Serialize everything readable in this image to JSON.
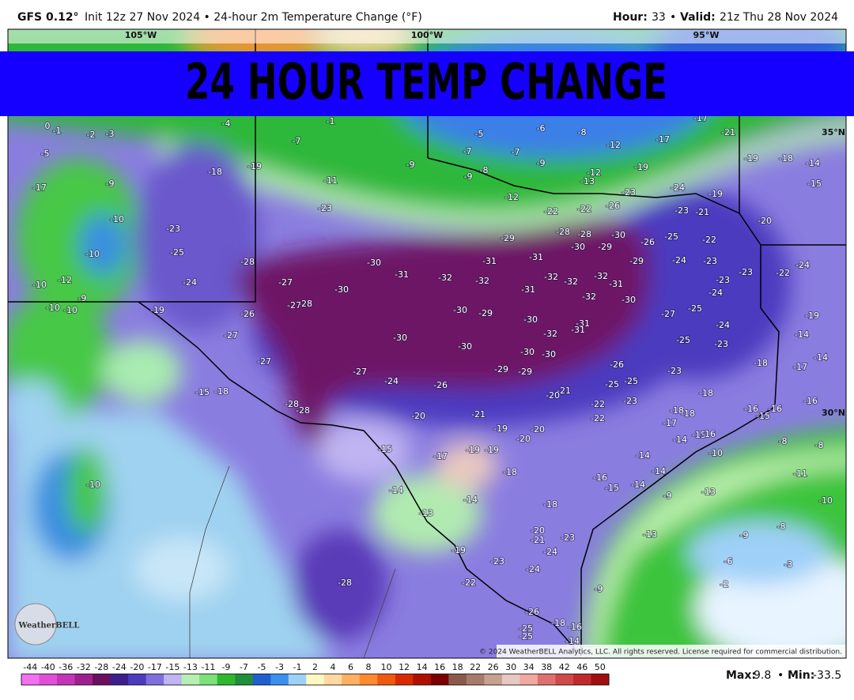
{
  "header": {
    "model": "GFS 0.12°",
    "description": "Init 12z 27 Nov 2024 • 24-hour 2m Temperature Change (°F)",
    "hour_label": "Hour:",
    "hour": "33",
    "separator": "•",
    "valid_label": "Valid:",
    "valid": "21z Thu 28 Nov 2024"
  },
  "banner": "24 HOUR TEMP CHANGE",
  "map": {
    "longitude_labels": [
      "105°W",
      "100°W",
      "95°W"
    ],
    "latitude_labels": [
      "35°N",
      "30°N"
    ],
    "grid_labels": [
      0,
      -1,
      -2,
      -3,
      -4,
      -1,
      -5,
      -6,
      -8,
      -7,
      -12,
      -17,
      -17,
      -21,
      -5,
      -7,
      -7,
      -9,
      -9,
      -19,
      -19,
      -18,
      -14,
      -17,
      -9,
      -18,
      -19,
      -11,
      -8,
      -9,
      -12,
      -13,
      -24,
      -19,
      -15,
      -12,
      -23,
      -23,
      -22,
      -22,
      -26,
      -23,
      -21,
      -20,
      -10,
      -23,
      -28,
      -28,
      -30,
      -29,
      -22,
      -26,
      -25,
      -10,
      -25,
      -30,
      -29,
      -30,
      -31,
      -31,
      -29,
      -24,
      -23,
      -24,
      -28,
      -23,
      -22,
      -12,
      -10,
      -24,
      -27,
      -30,
      -31,
      -32,
      -32,
      -32,
      -32,
      -32,
      -31,
      -23,
      -31,
      -32,
      -30,
      -24,
      -9,
      -10,
      -10,
      -19,
      -27,
      -28,
      -26,
      -30,
      -29,
      -25,
      -27,
      -19,
      -30,
      -31,
      -31,
      -32,
      -24,
      -14,
      -27,
      -30,
      -30,
      -25,
      -23,
      -14,
      -30,
      -30,
      -27,
      -26,
      -18,
      -17,
      -27,
      -29,
      -29,
      -23,
      -24,
      -26,
      -25,
      -25,
      -21,
      -20,
      -15,
      -18,
      -18,
      -22,
      -23,
      -16,
      -28,
      -28,
      -18,
      -18,
      -16,
      -15,
      -16,
      -20,
      -21,
      -22,
      -17,
      -19,
      -20,
      -14,
      -15,
      -20,
      -16,
      -8,
      -8,
      -15,
      -17,
      -19,
      -19,
      -14,
      -10,
      -14,
      -11,
      -18,
      -16,
      -10,
      -15,
      -14,
      -14,
      -9,
      -13,
      -10,
      -14,
      -18,
      -13,
      -8,
      -20,
      -21,
      -13,
      -9,
      -23,
      -19,
      -24,
      -6,
      -3,
      -23,
      -24,
      -9,
      -2,
      -28,
      -22,
      -26,
      -18,
      -16,
      -25,
      -25,
      -14
    ],
    "logo": "WeatherBELL",
    "copyright": "© 2024 WeatherBELL Analytics, LLC. All rights reserved. License required for commercial distribution."
  },
  "legend": {
    "levels": [
      -44,
      -40,
      -36,
      -32,
      -28,
      -24,
      -20,
      -17,
      -15,
      -13,
      -11,
      -9,
      -7,
      -5,
      -3,
      -1,
      2,
      4,
      6,
      8,
      10,
      12,
      14,
      16,
      18,
      22,
      26,
      30,
      34,
      38,
      42,
      46,
      50
    ],
    "colors": [
      "#f46ff2",
      "#e04fd8",
      "#c334b8",
      "#9e1f8f",
      "#6a0f5f",
      "#3c1d8c",
      "#4b3bbf",
      "#7e6fdc",
      "#c0b4f2",
      "#b6f0b0",
      "#7ee07a",
      "#2fb82f",
      "#1f8f3a",
      "#1f5fd0",
      "#3b8ff0",
      "#9fd0f8",
      "#fff8c0",
      "#ffd9a0",
      "#ffb060",
      "#ff8a30",
      "#f05a10",
      "#d82a00",
      "#b01000",
      "#7a0000",
      "#8a5a4a",
      "#a87a6a",
      "#c8a090",
      "#e8c8c0",
      "#f0a8a0",
      "#e07070",
      "#d04a4a",
      "#c02a2a",
      "#a01010"
    ]
  },
  "footer": {
    "max_label": "Max:",
    "max": 9.8,
    "min_label": "Min:",
    "min": -33.5
  }
}
